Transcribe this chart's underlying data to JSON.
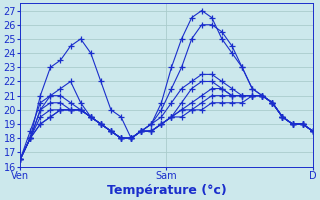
{
  "background_color": "#cce8ec",
  "grid_color": "#aacccc",
  "line_color": "#1a2ecc",
  "marker_color": "#1a2ecc",
  "xlabel": "Température (°c)",
  "xlabel_color": "#1a2ecc",
  "xlabel_fontsize": 9,
  "tick_color": "#1a2ecc",
  "tick_fontsize": 7,
  "ylim": [
    16,
    27.5
  ],
  "yticks": [
    16,
    17,
    18,
    19,
    20,
    21,
    22,
    23,
    24,
    25,
    26,
    27
  ],
  "xtick_labels": [
    "Ven",
    "Sam",
    "D"
  ],
  "xtick_positions": [
    0,
    24,
    48
  ],
  "series": [
    [
      16.5,
      18.0,
      21.0,
      23.0,
      23.5,
      24.5,
      25.0,
      24.0,
      22.0,
      20.0,
      19.5,
      18.0,
      18.5,
      19.0,
      20.5,
      23.0,
      25.0,
      26.5,
      27.0,
      26.5,
      25.0,
      24.0,
      23.0,
      21.5,
      21.0,
      20.5,
      19.5,
      19.0,
      19.0,
      18.5
    ],
    [
      16.5,
      18.0,
      20.0,
      21.0,
      21.5,
      22.0,
      20.5,
      19.5,
      19.0,
      18.5,
      18.0,
      18.0,
      18.5,
      19.0,
      20.0,
      21.5,
      23.0,
      25.0,
      26.0,
      26.0,
      25.5,
      24.5,
      23.0,
      21.5,
      21.0,
      20.5,
      19.5,
      19.0,
      19.0,
      18.5
    ],
    [
      16.5,
      18.5,
      20.5,
      21.0,
      21.0,
      20.5,
      20.0,
      19.5,
      19.0,
      18.5,
      18.0,
      18.0,
      18.5,
      19.0,
      19.5,
      20.5,
      21.5,
      22.0,
      22.5,
      22.5,
      22.0,
      21.5,
      21.0,
      21.0,
      21.0,
      20.5,
      19.5,
      19.0,
      19.0,
      18.5
    ],
    [
      16.5,
      18.0,
      20.0,
      20.5,
      20.5,
      20.0,
      20.0,
      19.5,
      19.0,
      18.5,
      18.0,
      18.0,
      18.5,
      18.5,
      19.0,
      19.5,
      20.5,
      21.5,
      22.0,
      22.0,
      21.5,
      21.0,
      21.0,
      21.0,
      21.0,
      20.5,
      19.5,
      19.0,
      19.0,
      18.5
    ],
    [
      16.5,
      18.0,
      19.5,
      20.0,
      20.0,
      20.0,
      20.0,
      19.5,
      19.0,
      18.5,
      18.0,
      18.0,
      18.5,
      18.5,
      19.0,
      19.5,
      20.0,
      20.5,
      21.0,
      21.5,
      21.5,
      21.0,
      21.0,
      21.0,
      21.0,
      20.5,
      19.5,
      19.0,
      19.0,
      18.5
    ],
    [
      16.5,
      18.0,
      19.0,
      19.5,
      20.0,
      20.0,
      20.0,
      19.5,
      19.0,
      18.5,
      18.0,
      18.0,
      18.5,
      18.5,
      19.0,
      19.5,
      20.0,
      20.0,
      20.5,
      21.0,
      21.0,
      21.0,
      21.0,
      21.0,
      21.0,
      20.5,
      19.5,
      19.0,
      19.0,
      18.5
    ],
    [
      16.5,
      18.0,
      19.0,
      19.5,
      20.0,
      20.0,
      20.0,
      19.5,
      19.0,
      18.5,
      18.0,
      18.0,
      18.5,
      18.5,
      19.0,
      19.5,
      19.5,
      20.0,
      20.0,
      20.5,
      20.5,
      20.5,
      20.5,
      21.0,
      21.0,
      20.5,
      19.5,
      19.0,
      19.0,
      18.5
    ]
  ],
  "n_xpoints": 30,
  "x_total": 48
}
